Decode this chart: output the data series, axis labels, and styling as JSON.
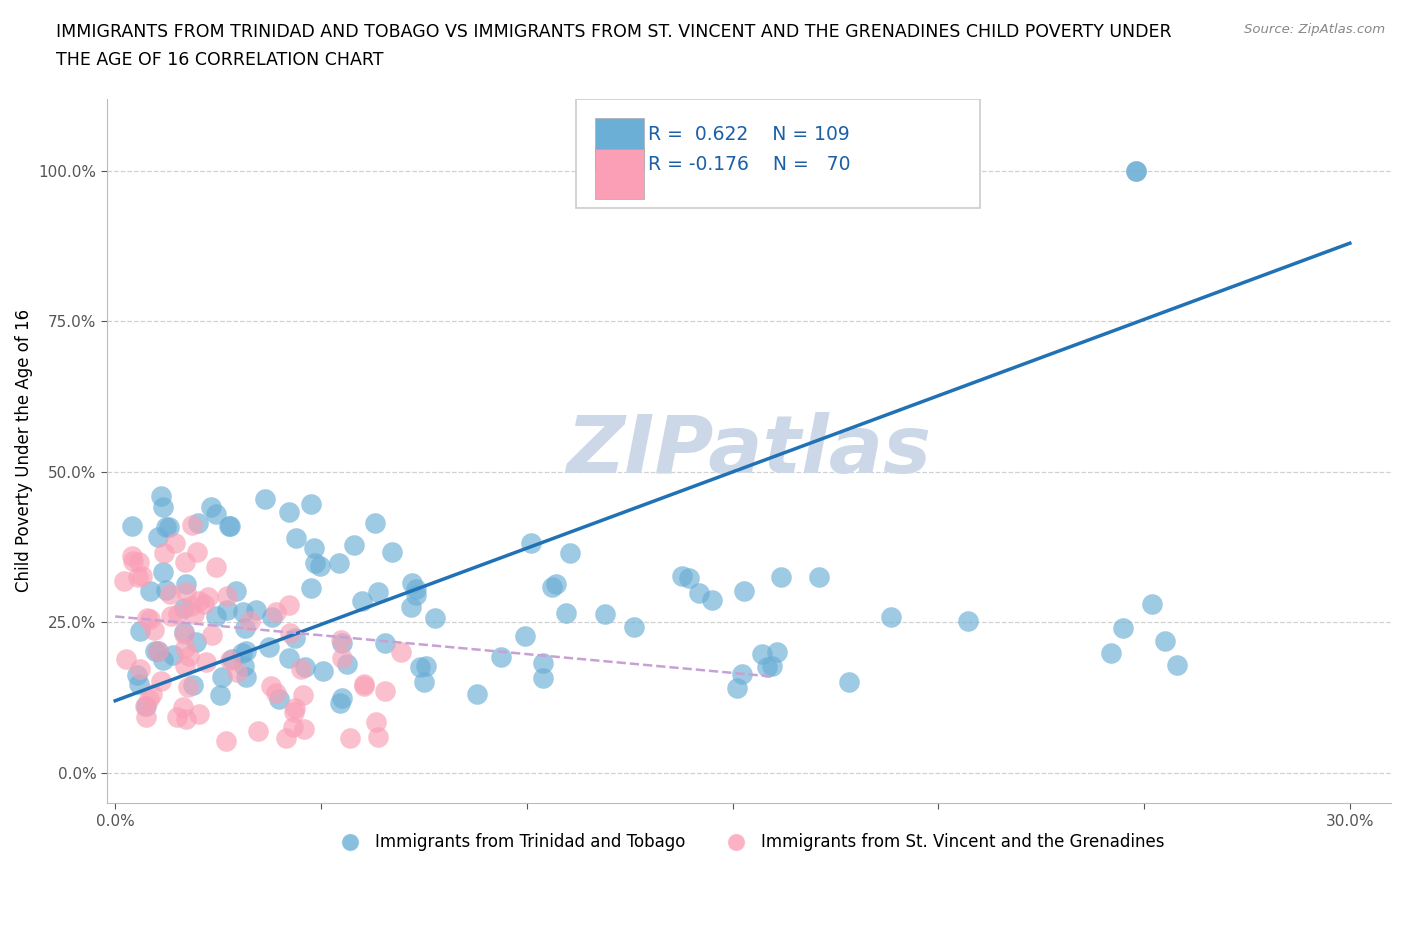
{
  "title_line1": "IMMIGRANTS FROM TRINIDAD AND TOBAGO VS IMMIGRANTS FROM ST. VINCENT AND THE GRENADINES CHILD POVERTY UNDER",
  "title_line2": "THE AGE OF 16 CORRELATION CHART",
  "source": "Source: ZipAtlas.com",
  "ylabel": "Child Poverty Under the Age of 16",
  "xlim": [
    -0.002,
    0.31
  ],
  "ylim": [
    -0.05,
    1.12
  ],
  "yticks": [
    0.0,
    0.25,
    0.5,
    0.75,
    1.0
  ],
  "ytick_labels": [
    "0.0%",
    "25.0%",
    "50.0%",
    "75.0%",
    "100.0%"
  ],
  "xticks": [
    0.0,
    0.05,
    0.1,
    0.15,
    0.2,
    0.25,
    0.3
  ],
  "xtick_labels": [
    "0.0%",
    "",
    "",
    "",
    "",
    "",
    "30.0%"
  ],
  "blue_color": "#6baed6",
  "pink_color": "#fa9fb5",
  "blue_line_color": "#2171b5",
  "pink_line_color": "#c8a0d4",
  "legend_R1": "0.622",
  "legend_N1": "109",
  "legend_R2": "-0.176",
  "legend_N2": "70",
  "watermark": "ZIPatlas",
  "watermark_color": "#ccd8e8",
  "blue_trend_x": [
    0.0,
    0.3
  ],
  "blue_trend_y": [
    0.12,
    0.88
  ],
  "pink_trend_x": [
    0.0,
    0.16
  ],
  "pink_trend_y": [
    0.26,
    0.16
  ],
  "legend_label1": "Immigrants from Trinidad and Tobago",
  "legend_label2": "Immigrants from St. Vincent and the Grenadines",
  "title_fontsize": 12.5,
  "axis_label_fontsize": 12,
  "tick_fontsize": 11,
  "legend_fontsize": 12
}
